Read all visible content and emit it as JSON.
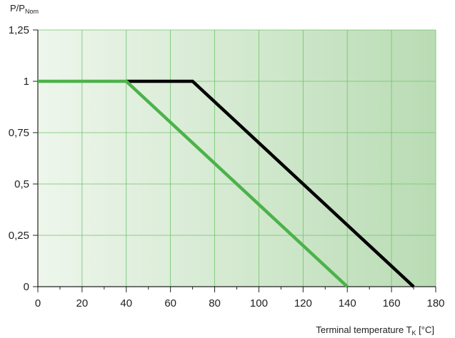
{
  "chart_data": {
    "type": "line",
    "title": "",
    "ylabel": {
      "main": "P/P",
      "sub": "Nom"
    },
    "xlabel": {
      "main": "Terminal temperature  T",
      "sub": "K",
      "unit": " [°C]"
    },
    "xlim": [
      0,
      180
    ],
    "ylim": [
      0,
      1.25
    ],
    "x_ticks": [
      0,
      20,
      40,
      60,
      80,
      100,
      120,
      140,
      160,
      180
    ],
    "x_tick_labels": [
      "0",
      "20",
      "40",
      "60",
      "80",
      "100",
      "120",
      "140",
      "160",
      "180"
    ],
    "y_ticks": [
      0,
      0.25,
      0.5,
      0.75,
      1,
      1.25
    ],
    "y_tick_labels": [
      "0",
      "0,25",
      "0,5",
      "0,75",
      "1",
      "1,25"
    ],
    "x_minor_ticks": [
      10,
      30,
      50,
      70,
      90,
      110,
      130,
      150,
      170
    ],
    "grid": true,
    "series": [
      {
        "color": "#000000",
        "x": [
          40,
          70,
          170
        ],
        "y": [
          1,
          1,
          0
        ]
      },
      {
        "color": "#4cb24a",
        "x": [
          0,
          40,
          140
        ],
        "y": [
          1,
          1,
          0
        ]
      }
    ],
    "colors": {
      "bg_left": "#eef6ec",
      "bg_right": "#b9dcb4",
      "grid": "#6fc36a",
      "axis": "#222222"
    }
  }
}
